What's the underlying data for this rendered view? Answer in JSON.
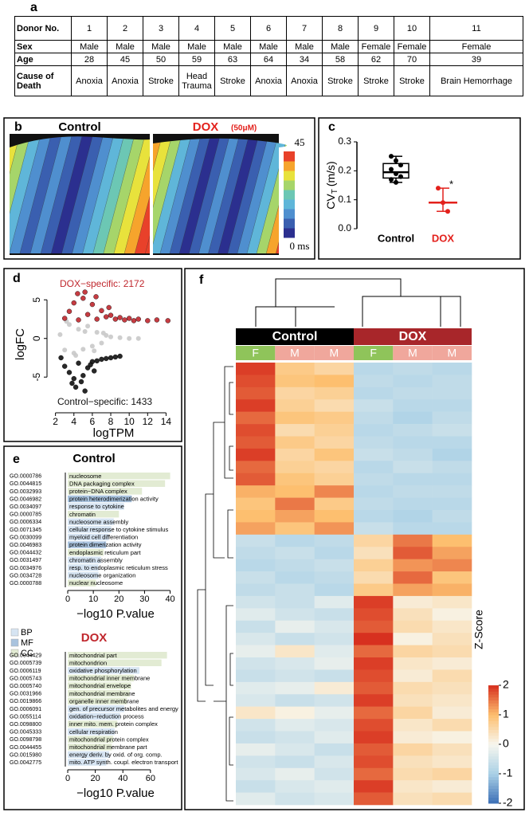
{
  "panel_labels": [
    "a",
    "b",
    "c",
    "d",
    "e",
    "f"
  ],
  "table": {
    "header": [
      "Donor No.",
      1,
      2,
      3,
      4,
      5,
      6,
      7,
      8,
      9,
      10,
      11
    ],
    "rows": [
      [
        "Sex",
        "Male",
        "Male",
        "Male",
        "Male",
        "Male",
        "Male",
        "Male",
        "Male",
        "Female",
        "Female",
        "Female"
      ],
      [
        "Age",
        28,
        45,
        50,
        59,
        63,
        64,
        34,
        58,
        62,
        70,
        39
      ],
      [
        "Cause of Death",
        "Anoxia",
        "Anoxia",
        "Stroke",
        "Head Trauma",
        "Stroke",
        "Anoxia",
        "Anoxia",
        "Stroke",
        "Stroke",
        "Stroke",
        "Brain Hemorrhage"
      ]
    ]
  },
  "activation_maps": {
    "titles": [
      "Control",
      "DOX"
    ],
    "title_colors": [
      "#000000",
      "#e3211c"
    ],
    "dose": "(50μM)",
    "colorscale": [
      "#2b2f8f",
      "#3a5fb0",
      "#4f8fcf",
      "#5fb6d9",
      "#6cc7b4",
      "#a6d56a",
      "#e8e23c",
      "#f6a42c",
      "#e8412a"
    ],
    "colorbar_ticks": [
      45,
      {
        "value": 0,
        "label": "0 ms"
      }
    ]
  },
  "chart_data": [
    {
      "type": "box",
      "ylabel": "CV",
      "ylabel_sub": "T",
      "ylabel_unit": "(m/s)",
      "categories": [
        "Control",
        "DOX"
      ],
      "colors": [
        "#000000",
        "#e3211c"
      ],
      "points": [
        [
          0.25,
          0.235,
          0.22,
          0.205,
          0.19,
          0.18,
          0.17,
          0.16
        ],
        [
          0.14,
          0.09,
          0.06
        ]
      ],
      "stats": [
        {
          "min": 0.16,
          "q1": 0.175,
          "median": 0.195,
          "q3": 0.225,
          "max": 0.25
        },
        {
          "min": 0.06,
          "median": 0.09,
          "max": 0.14
        }
      ],
      "annotation": "*",
      "ylim": [
        0,
        0.3
      ],
      "yticks": [
        {
          "value": 0,
          "label": "0.0"
        },
        0.1,
        0.2,
        0.3
      ]
    },
    {
      "type": "scatter",
      "xlabel": "logTPM",
      "ylabel": "logFC",
      "xlim": [
        1.6,
        15
      ],
      "xticks": [
        2,
        4,
        6,
        8,
        10,
        12,
        14
      ],
      "ylim": [
        -9,
        7.5
      ],
      "yticks": [
        -5,
        0,
        5
      ],
      "series": [
        {
          "color": "#c9c9c9",
          "x": [
            2.5,
            3,
            3.5,
            4,
            4.5,
            5,
            5.5,
            6,
            6.5,
            7,
            7.5,
            8,
            9,
            10,
            11,
            3.2,
            4.2,
            5.2,
            6.2,
            7.2
          ],
          "y": [
            0.5,
            -1.5,
            1.8,
            -1.9,
            1.2,
            -1.4,
            1.6,
            -1.0,
            0.8,
            -0.6,
            0.4,
            0.2,
            0.1,
            0,
            0,
            2.2,
            -2.2,
            0.9,
            -1.6,
            0.7
          ]
        },
        {
          "color": "#c0272d",
          "x": [
            3,
            3.5,
            4,
            4.5,
            5,
            5.5,
            6,
            6.5,
            7,
            7.5,
            8,
            8.5,
            9,
            9.5,
            10,
            10.5,
            11,
            12,
            13,
            14.2,
            5.2,
            6.4,
            7.8,
            4.4
          ],
          "y": [
            2.6,
            3.5,
            4.6,
            2.4,
            5.2,
            3.1,
            4.4,
            2.5,
            3.6,
            2.8,
            3.0,
            2.5,
            2.7,
            2.4,
            2.6,
            2.3,
            2.5,
            2.3,
            2.4,
            2.3,
            6.0,
            5.4,
            4.0,
            5.8
          ]
        },
        {
          "color": "#111111",
          "x": [
            2.6,
            3,
            3.5,
            4,
            4.5,
            5,
            5.5,
            6,
            6.5,
            7,
            7.5,
            8,
            8.5,
            9,
            4.2,
            5.2,
            3.8,
            6.2,
            4.8,
            5.8
          ],
          "y": [
            -2.5,
            -3.6,
            -4.4,
            -5.2,
            -3.2,
            -4.8,
            -3.8,
            -3.0,
            -2.9,
            -2.7,
            -2.6,
            -2.5,
            -2.4,
            -2.3,
            -6.3,
            -6.8,
            -5.8,
            -4.2,
            -5.6,
            -3.4
          ]
        }
      ],
      "annotations": [
        {
          "text": "DOX−specific: 2172",
          "color": "#c0272d"
        },
        {
          "text": "Control−specific: 1433",
          "color": "#111111"
        }
      ]
    },
    {
      "type": "hbar",
      "title": "Control",
      "title_color": "#000000",
      "xlabel": "−log10 P.value",
      "xlim": [
        0,
        42
      ],
      "xticks": [
        0,
        10,
        20,
        30,
        40
      ],
      "legend": [
        {
          "name": "BP",
          "color": "#d6e4f2"
        },
        {
          "name": "MF",
          "color": "#a9c3de"
        },
        {
          "name": "CC",
          "color": "#e2ebd3"
        }
      ],
      "ids": [
        "GO.0000786",
        "GO.0044815",
        "GO.0032993",
        "GO.0046982",
        "GO.0034097",
        "GO.0000785",
        "GO.0006334",
        "GO.0071345",
        "GO.0030099",
        "GO.0046983",
        "GO.0044432",
        "GO.0031497",
        "GO.0034976",
        "GO.0034728",
        "GO.0000788"
      ],
      "categories": [
        "nucleosome",
        "DNA packaging complex",
        "protein−DNA complex",
        "protein heterodimerization activity",
        "response to cytokine",
        "chromatin",
        "nucleosome assembly",
        "cellular response to cytokine stimulus",
        "myeloid cell differentiation",
        "protein dimerization activity",
        "endoplasmic reticulum part",
        "chromatin assembly",
        "resp. to endoplasmic reticulum stress",
        "nucleosome organization",
        "nuclear nucleosome"
      ],
      "groups": [
        "CC",
        "CC",
        "CC",
        "MF",
        "BP",
        "CC",
        "BP",
        "BP",
        "BP",
        "MF",
        "CC",
        "BP",
        "BP",
        "BP",
        "CC"
      ],
      "values": [
        40,
        38,
        29,
        25,
        22,
        20,
        18,
        17,
        16,
        15,
        14,
        13,
        12,
        12,
        11
      ]
    },
    {
      "type": "hbar",
      "title": "DOX",
      "title_color": "#c0272d",
      "xlabel": "−log10 P.value",
      "xlim": [
        0,
        78
      ],
      "xticks": [
        0,
        20,
        40,
        60
      ],
      "ids": [
        "GO.0044429",
        "GO.0005739",
        "GO.0006119",
        "GO.0005743",
        "GO.0005740",
        "GO.0031966",
        "GO.0019866",
        "GO.0006091",
        "GO.0055114",
        "GO.0098800",
        "GO.0045333",
        "GO.0098798",
        "GO.0044455",
        "GO.0015980",
        "GO.0042775"
      ],
      "categories": [
        "mitochondrial part",
        "mitochondrion",
        "oxidative phosphorylation",
        "mitochondrial inner membrane",
        "mitochondrial envelope",
        "mitochondrial membrane",
        "organelle inner membrane",
        "gen. of precursor metabolites and energy",
        "oxidation−reduction process",
        "inner mito. mem. protein complex",
        "cellular respiration",
        "mitochondrial protein complex",
        "mitochondrial membrane part",
        "energy deriv. by oxid. of org. comp.",
        "mito. ATP synth. coupl. electron transport"
      ],
      "groups": [
        "CC",
        "CC",
        "BP",
        "CC",
        "CC",
        "CC",
        "CC",
        "BP",
        "BP",
        "CC",
        "BP",
        "CC",
        "CC",
        "BP",
        "BP"
      ],
      "values": [
        72,
        68,
        52,
        48,
        46,
        45,
        43,
        41,
        38,
        36,
        34,
        33,
        32,
        30,
        28
      ]
    },
    {
      "type": "heatmap",
      "groups": [
        {
          "name": "Control",
          "color": "#000000"
        },
        {
          "name": "DOX",
          "color": "#a8262a"
        }
      ],
      "columns": [
        "F",
        "M",
        "M",
        "F",
        "M",
        "M"
      ],
      "sex_colors": {
        "F": "#8fc45a",
        "M": "#f0a79c"
      },
      "colorbar_label": "Z-Score",
      "zlim": [
        -2,
        2
      ],
      "zticks": [
        -2,
        -1,
        0,
        1,
        2
      ],
      "colorscale": [
        "#3b6fb6",
        "#a9d0e6",
        "#f7f6ee",
        "#fdbf6f",
        "#d7301f"
      ],
      "values": [
        [
          1.9,
          0.8,
          0.6,
          -0.8,
          -0.7,
          -0.8
        ],
        [
          1.8,
          0.9,
          1.0,
          -0.7,
          -0.8,
          -0.7
        ],
        [
          1.7,
          0.6,
          0.7,
          -0.8,
          -0.7,
          -0.7
        ],
        [
          1.9,
          0.7,
          0.5,
          -0.6,
          -0.8,
          -0.8
        ],
        [
          1.6,
          0.9,
          0.8,
          -0.7,
          -0.9,
          -0.7
        ],
        [
          1.8,
          0.5,
          0.7,
          -0.8,
          -0.7,
          -0.6
        ],
        [
          1.7,
          0.8,
          0.6,
          -0.7,
          -0.8,
          -0.8
        ],
        [
          1.9,
          0.6,
          0.9,
          -0.6,
          -0.7,
          -0.9
        ],
        [
          1.6,
          0.7,
          0.6,
          -0.8,
          -0.6,
          -0.7
        ],
        [
          1.7,
          0.9,
          0.7,
          -0.7,
          -0.8,
          -0.8
        ],
        [
          1.1,
          1.0,
          1.4,
          -0.8,
          -0.7,
          -0.7
        ],
        [
          0.9,
          1.5,
          0.8,
          -0.7,
          -0.8,
          -0.8
        ],
        [
          1.0,
          1.2,
          1.0,
          -0.8,
          -0.9,
          -0.7
        ],
        [
          1.2,
          0.9,
          1.3,
          -0.6,
          -0.8,
          -0.8
        ],
        [
          -0.6,
          -0.8,
          -0.7,
          0.6,
          1.5,
          1.0
        ],
        [
          -0.7,
          -0.6,
          -0.8,
          0.4,
          1.7,
          1.2
        ],
        [
          -0.8,
          -0.7,
          -0.6,
          0.7,
          1.3,
          1.4
        ],
        [
          -0.6,
          -0.8,
          -0.7,
          0.5,
          1.6,
          0.9
        ],
        [
          -0.7,
          -0.6,
          -0.8,
          0.8,
          1.2,
          1.1
        ],
        [
          -0.5,
          -0.6,
          -0.3,
          1.9,
          0.2,
          0.3
        ],
        [
          -0.3,
          -0.5,
          -0.6,
          1.8,
          0.4,
          0.1
        ],
        [
          -0.6,
          -0.2,
          -0.4,
          1.7,
          0.5,
          0.3
        ],
        [
          -0.4,
          -0.6,
          -0.5,
          2.0,
          0.1,
          0.4
        ],
        [
          -0.2,
          0.3,
          -0.3,
          1.6,
          0.6,
          0.5
        ],
        [
          -0.5,
          -0.4,
          -0.2,
          1.9,
          0.3,
          0.2
        ],
        [
          -0.6,
          -0.5,
          -0.6,
          1.8,
          0.2,
          0.5
        ],
        [
          -0.3,
          -0.2,
          0.2,
          1.7,
          0.5,
          0.4
        ],
        [
          -0.4,
          -0.6,
          -0.5,
          1.9,
          0.4,
          0.3
        ],
        [
          0.3,
          0.1,
          -0.2,
          1.6,
          0.6,
          0.2
        ],
        [
          -0.5,
          -0.3,
          -0.4,
          1.8,
          0.3,
          0.5
        ],
        [
          -0.6,
          -0.5,
          -0.3,
          1.9,
          0.2,
          0.1
        ],
        [
          -0.2,
          -0.4,
          -0.6,
          1.7,
          0.6,
          0.4
        ],
        [
          -0.5,
          -0.6,
          -0.4,
          1.8,
          0.4,
          0.3
        ],
        [
          -0.4,
          -0.2,
          -0.5,
          1.6,
          0.5,
          0.6
        ],
        [
          -0.6,
          -0.4,
          -0.3,
          1.9,
          0.3,
          0.2
        ],
        [
          -0.3,
          -0.5,
          -0.4,
          1.7,
          0.4,
          0.5
        ]
      ]
    }
  ]
}
